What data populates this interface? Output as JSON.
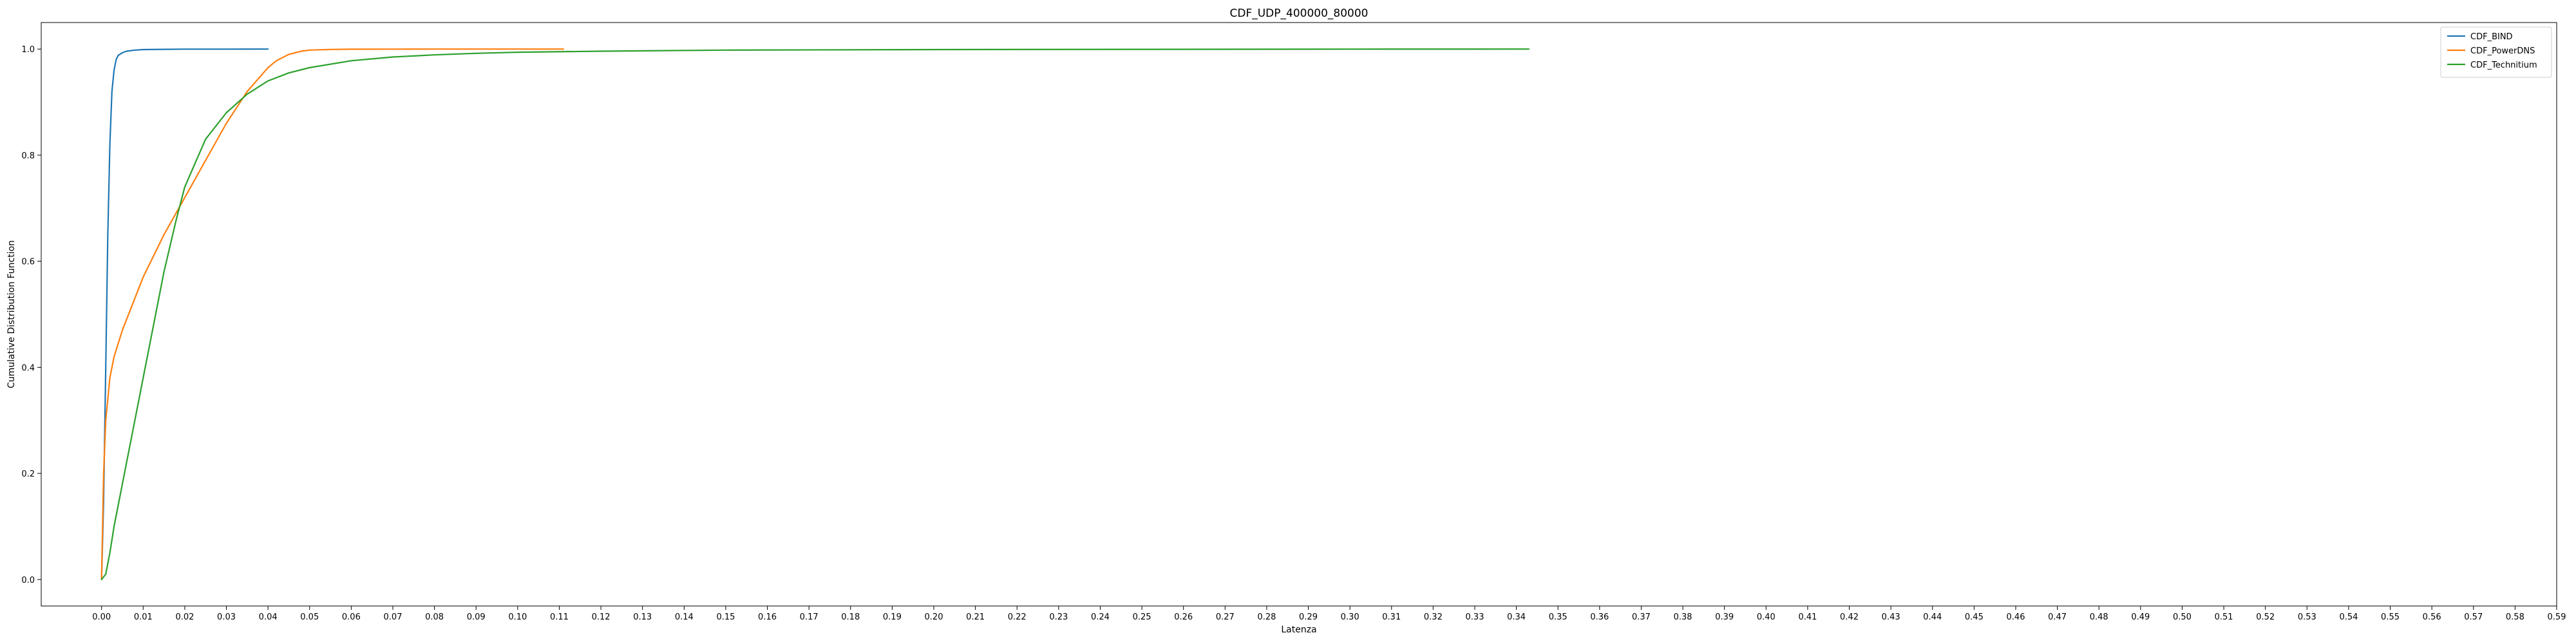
{
  "chart_data": {
    "type": "line",
    "title": "CDF_UDP_400000_80000",
    "xlabel": "Latenza",
    "ylabel": "Cumulative Distribution Function",
    "xlim": [
      -0.0145,
      0.59
    ],
    "ylim": [
      -0.05,
      1.05
    ],
    "grid": false,
    "legend_position": "top-right",
    "x_ticks": [
      0.0,
      0.01,
      0.02,
      0.03,
      0.04,
      0.05,
      0.06,
      0.07,
      0.08,
      0.09,
      0.1,
      0.11,
      0.12,
      0.13,
      0.14,
      0.15,
      0.16,
      0.17,
      0.18,
      0.19,
      0.2,
      0.21,
      0.22,
      0.23,
      0.24,
      0.25,
      0.26,
      0.27,
      0.28,
      0.29,
      0.3,
      0.31,
      0.32,
      0.33,
      0.34,
      0.35,
      0.36,
      0.37,
      0.38,
      0.39,
      0.4,
      0.41,
      0.42,
      0.43,
      0.44,
      0.45,
      0.46,
      0.47,
      0.48,
      0.49,
      0.5,
      0.51,
      0.52,
      0.53,
      0.54,
      0.55,
      0.56,
      0.57,
      0.58,
      0.59
    ],
    "x_tick_labels": [
      "0.00",
      "0.01",
      "0.02",
      "0.03",
      "0.04",
      "0.05",
      "0.06",
      "0.07",
      "0.08",
      "0.09",
      "0.10",
      "0.11",
      "0.12",
      "0.13",
      "0.14",
      "0.15",
      "0.16",
      "0.17",
      "0.18",
      "0.19",
      "0.20",
      "0.21",
      "0.22",
      "0.23",
      "0.24",
      "0.25",
      "0.26",
      "0.27",
      "0.28",
      "0.29",
      "0.30",
      "0.31",
      "0.32",
      "0.33",
      "0.34",
      "0.35",
      "0.36",
      "0.37",
      "0.38",
      "0.39",
      "0.40",
      "0.41",
      "0.42",
      "0.43",
      "0.44",
      "0.45",
      "0.46",
      "0.47",
      "0.48",
      "0.49",
      "0.50",
      "0.51",
      "0.52",
      "0.53",
      "0.54",
      "0.55",
      "0.56",
      "0.57",
      "0.58",
      "0.59"
    ],
    "y_ticks": [
      0.0,
      0.2,
      0.4,
      0.6,
      0.8,
      1.0
    ],
    "y_tick_labels": [
      "0.0",
      "0.2",
      "0.4",
      "0.6",
      "0.8",
      "1.0"
    ],
    "series": [
      {
        "name": "CDF_BIND",
        "color": "#1f77b4",
        "x": [
          0.0,
          0.0005,
          0.001,
          0.0015,
          0.002,
          0.0025,
          0.003,
          0.0035,
          0.004,
          0.005,
          0.006,
          0.008,
          0.01,
          0.015,
          0.02,
          0.03,
          0.04
        ],
        "y": [
          0.0,
          0.15,
          0.4,
          0.65,
          0.82,
          0.92,
          0.96,
          0.98,
          0.988,
          0.993,
          0.996,
          0.998,
          0.999,
          0.9995,
          0.9998,
          0.9999,
          1.0
        ]
      },
      {
        "name": "CDF_PowerDNS",
        "color": "#ff7f0e",
        "x": [
          0.0,
          0.0005,
          0.001,
          0.002,
          0.003,
          0.005,
          0.008,
          0.01,
          0.015,
          0.02,
          0.025,
          0.03,
          0.035,
          0.04,
          0.042,
          0.045,
          0.048,
          0.05,
          0.055,
          0.06,
          0.07,
          0.08,
          0.09,
          0.1,
          0.111
        ],
        "y": [
          0.0,
          0.2,
          0.3,
          0.38,
          0.42,
          0.47,
          0.53,
          0.57,
          0.65,
          0.72,
          0.79,
          0.86,
          0.92,
          0.965,
          0.978,
          0.99,
          0.996,
          0.998,
          0.9993,
          0.9997,
          0.9999,
          0.99995,
          0.99998,
          0.99999,
          1.0
        ]
      },
      {
        "name": "CDF_Technitium",
        "color": "#2ca02c",
        "x": [
          0.0,
          0.001,
          0.002,
          0.003,
          0.005,
          0.008,
          0.01,
          0.013,
          0.015,
          0.018,
          0.02,
          0.025,
          0.03,
          0.035,
          0.04,
          0.045,
          0.05,
          0.06,
          0.07,
          0.08,
          0.09,
          0.1,
          0.12,
          0.15,
          0.2,
          0.25,
          0.3,
          0.343
        ],
        "y": [
          0.0,
          0.01,
          0.05,
          0.1,
          0.18,
          0.3,
          0.38,
          0.5,
          0.58,
          0.68,
          0.74,
          0.83,
          0.88,
          0.915,
          0.94,
          0.955,
          0.965,
          0.978,
          0.985,
          0.989,
          0.992,
          0.994,
          0.996,
          0.998,
          0.999,
          0.9995,
          0.9998,
          1.0
        ]
      }
    ]
  }
}
